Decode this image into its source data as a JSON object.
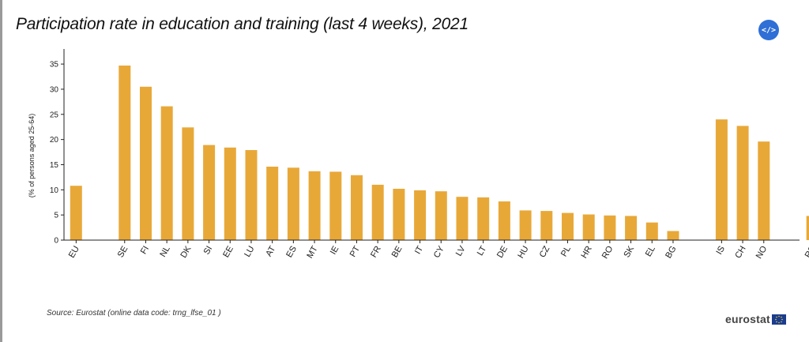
{
  "title": "Participation rate in education and training (last 4 weeks), 2021",
  "embed_button": {
    "label": "</>",
    "icon": "code-embed-icon"
  },
  "source": "Source: Eurostat (online data code: trng_lfse_01 )",
  "logo": {
    "text": "eurostat",
    "icon": "eu-flag-icon"
  },
  "colors": {
    "bar": "#e8a838",
    "axis": "#222222",
    "embed": "#2f6fd6"
  },
  "chart_data": {
    "type": "bar",
    "ylabel": "(% of persons aged 25-64)",
    "ylim": [
      0,
      38
    ],
    "yticks": [
      0,
      5,
      10,
      15,
      20,
      25,
      30,
      35
    ],
    "grid": false,
    "legend": "none",
    "categories": [
      "EU",
      "SE",
      "FI",
      "NL",
      "DK",
      "SI",
      "EE",
      "LU",
      "AT",
      "ES",
      "MT",
      "IE",
      "PT",
      "FR",
      "BE",
      "IT",
      "CY",
      "LV",
      "LT",
      "DE",
      "HU",
      "CZ",
      "PL",
      "HR",
      "RO",
      "SK",
      "EL",
      "BG",
      "IS",
      "CH",
      "NO",
      "RS"
    ],
    "values": [
      10.8,
      34.7,
      30.5,
      26.6,
      22.4,
      18.9,
      18.4,
      17.9,
      14.6,
      14.4,
      13.7,
      13.6,
      12.9,
      11.0,
      10.2,
      9.9,
      9.7,
      8.6,
      8.5,
      7.7,
      5.9,
      5.8,
      5.4,
      5.1,
      4.9,
      4.8,
      3.5,
      1.8,
      24.0,
      22.7,
      19.6,
      4.8
    ],
    "groups": [
      [
        "EU"
      ],
      [
        "SE",
        "FI",
        "NL",
        "DK",
        "SI",
        "EE",
        "LU",
        "AT",
        "ES",
        "MT",
        "IE",
        "PT",
        "FR",
        "BE",
        "IT",
        "CY",
        "LV",
        "LT",
        "DE",
        "HU",
        "CZ",
        "PL",
        "HR",
        "RO",
        "SK",
        "EL",
        "BG"
      ],
      [
        "IS",
        "CH",
        "NO"
      ],
      [
        "RS"
      ]
    ]
  }
}
